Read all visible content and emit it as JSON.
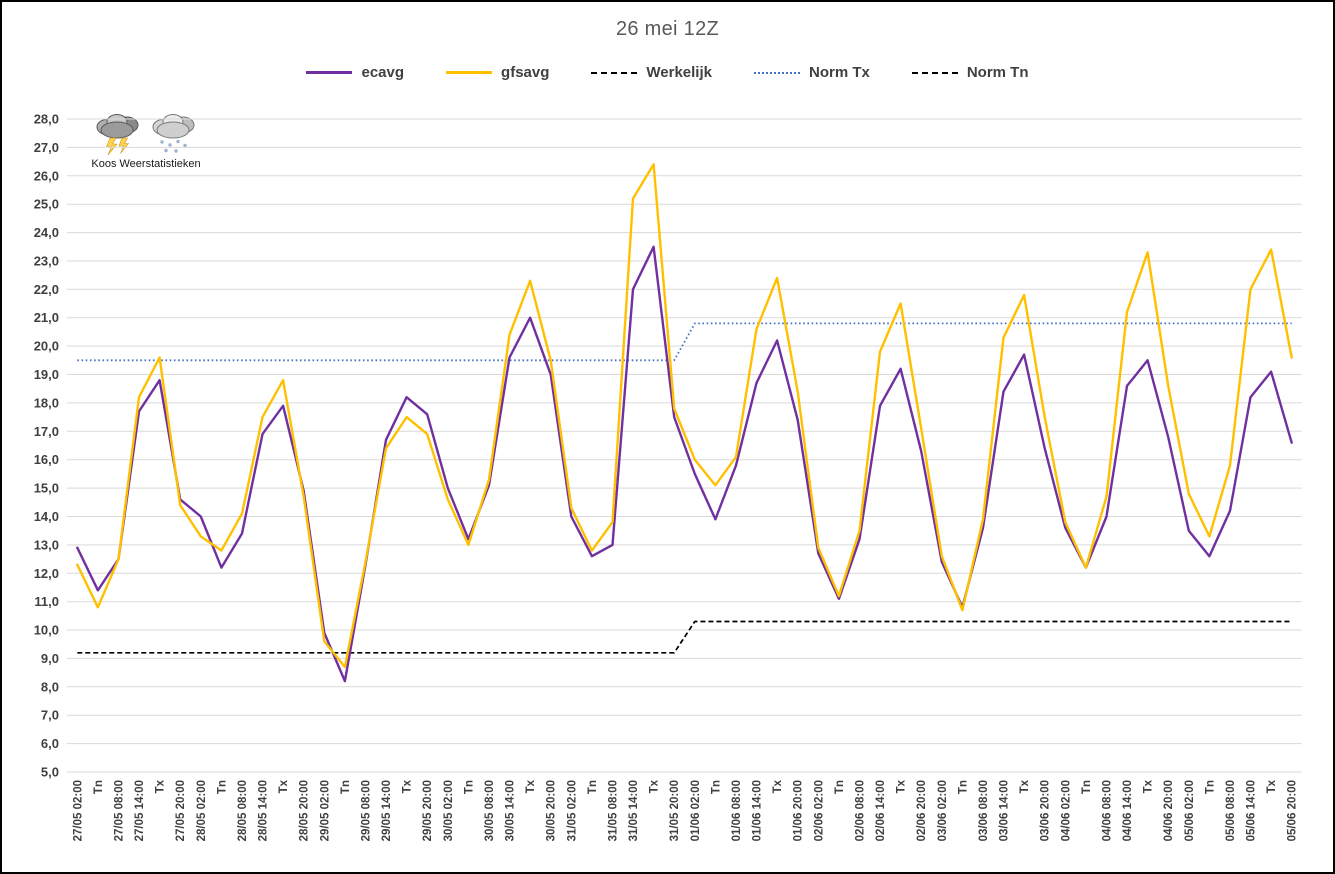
{
  "title": "26 mei 12Z",
  "logo": {
    "label": "Koos Weerstatistieken"
  },
  "legend": [
    {
      "label": "ecavg",
      "color": "#7030A0",
      "style": "solid"
    },
    {
      "label": "gfsavg",
      "color": "#FFC000",
      "style": "solid"
    },
    {
      "label": "Werkelijk",
      "color": "#000000",
      "style": "dashed"
    },
    {
      "label": "Norm Tx",
      "color": "#4472C4",
      "style": "dotted"
    },
    {
      "label": "Norm Tn",
      "color": "#000000",
      "style": "dashed"
    }
  ],
  "chart_data": {
    "type": "line",
    "title": "26 mei 12Z",
    "ylabel": "",
    "xlabel": "",
    "ylim": [
      5.0,
      28.0
    ],
    "ytick_step": 1.0,
    "decimal_separator": ",",
    "grid": true,
    "legend_position": "top",
    "categories": [
      "27/05 02:00",
      "Tn",
      "27/05 08:00",
      "27/05 14:00",
      "Tx",
      "27/05 20:00",
      "28/05 02:00",
      "Tn",
      "28/05 08:00",
      "28/05 14:00",
      "Tx",
      "28/05 20:00",
      "29/05 02:00",
      "Tn",
      "29/05 08:00",
      "29/05 14:00",
      "Tx",
      "29/05 20:00",
      "30/05 02:00",
      "Tn",
      "30/05 08:00",
      "30/05 14:00",
      "Tx",
      "30/05 20:00",
      "31/05 02:00",
      "Tn",
      "31/05 08:00",
      "31/05 14:00",
      "Tx",
      "31/05 20:00",
      "01/06 02:00",
      "Tn",
      "01/06 08:00",
      "01/06 14:00",
      "Tx",
      "01/06 20:00",
      "02/06 02:00",
      "Tn",
      "02/06 08:00",
      "02/06 14:00",
      "Tx",
      "02/06 20:00",
      "03/06 02:00",
      "Tn",
      "03/06 08:00",
      "03/06 14:00",
      "Tx",
      "03/06 20:00",
      "04/06 02:00",
      "Tn",
      "04/06 08:00",
      "04/06 14:00",
      "Tx",
      "04/06 20:00",
      "05/06 02:00",
      "Tn",
      "05/06 08:00",
      "05/06 14:00",
      "Tx",
      "05/06 20:00"
    ],
    "series": [
      {
        "name": "ecavg",
        "color": "#7030A0",
        "style": "solid",
        "values": [
          12.9,
          11.4,
          12.5,
          17.7,
          18.8,
          14.6,
          14.0,
          12.2,
          13.4,
          16.9,
          17.9,
          14.9,
          9.9,
          8.2,
          12.3,
          16.7,
          18.2,
          17.6,
          15.0,
          13.2,
          15.1,
          19.6,
          21.0,
          19.0,
          14.0,
          12.6,
          13.0,
          22.0,
          23.5,
          17.5,
          15.5,
          13.9,
          15.8,
          18.7,
          20.2,
          17.4,
          12.7,
          11.1,
          13.2,
          17.9,
          19.2,
          16.3,
          12.4,
          10.8,
          13.6,
          18.4,
          19.7,
          16.4,
          13.6,
          12.2,
          14.0,
          18.6,
          19.5,
          16.8,
          13.5,
          12.6,
          14.2,
          18.2,
          19.1,
          16.6
        ]
      },
      {
        "name": "gfsavg",
        "color": "#FFC000",
        "style": "solid",
        "values": [
          12.3,
          10.8,
          12.5,
          18.2,
          19.6,
          14.4,
          13.3,
          12.8,
          14.1,
          17.5,
          18.8,
          14.7,
          9.6,
          8.7,
          12.4,
          16.4,
          17.5,
          16.9,
          14.6,
          13.0,
          15.3,
          20.4,
          22.3,
          19.5,
          14.3,
          12.8,
          13.8,
          25.2,
          26.4,
          17.8,
          16.0,
          15.1,
          16.1,
          20.6,
          22.4,
          18.4,
          12.9,
          11.2,
          13.5,
          19.8,
          21.5,
          17.1,
          12.6,
          10.7,
          13.9,
          20.3,
          21.8,
          17.5,
          13.8,
          12.2,
          14.7,
          21.2,
          23.3,
          18.6,
          14.8,
          13.3,
          15.8,
          22.0,
          23.4,
          19.6
        ]
      },
      {
        "name": "Werkelijk",
        "color": "#000000",
        "style": "dashed",
        "values": []
      },
      {
        "name": "Norm Tx",
        "color": "#4472C4",
        "style": "dotted",
        "values": [
          19.5,
          19.5,
          19.5,
          19.5,
          19.5,
          19.5,
          19.5,
          19.5,
          19.5,
          19.5,
          19.5,
          19.5,
          19.5,
          19.5,
          19.5,
          19.5,
          19.5,
          19.5,
          19.5,
          19.5,
          19.5,
          19.5,
          19.5,
          19.5,
          19.5,
          19.5,
          19.5,
          19.5,
          19.5,
          19.5,
          20.8,
          20.8,
          20.8,
          20.8,
          20.8,
          20.8,
          20.8,
          20.8,
          20.8,
          20.8,
          20.8,
          20.8,
          20.8,
          20.8,
          20.8,
          20.8,
          20.8,
          20.8,
          20.8,
          20.8,
          20.8,
          20.8,
          20.8,
          20.8,
          20.8,
          20.8,
          20.8,
          20.8,
          20.8,
          20.8
        ]
      },
      {
        "name": "Norm Tn",
        "color": "#000000",
        "style": "dashed",
        "values": [
          9.2,
          9.2,
          9.2,
          9.2,
          9.2,
          9.2,
          9.2,
          9.2,
          9.2,
          9.2,
          9.2,
          9.2,
          9.2,
          9.2,
          9.2,
          9.2,
          9.2,
          9.2,
          9.2,
          9.2,
          9.2,
          9.2,
          9.2,
          9.2,
          9.2,
          9.2,
          9.2,
          9.2,
          9.2,
          9.2,
          10.3,
          10.3,
          10.3,
          10.3,
          10.3,
          10.3,
          10.3,
          10.3,
          10.3,
          10.3,
          10.3,
          10.3,
          10.3,
          10.3,
          10.3,
          10.3,
          10.3,
          10.3,
          10.3,
          10.3,
          10.3,
          10.3,
          10.3,
          10.3,
          10.3,
          10.3,
          10.3,
          10.3,
          10.3,
          10.3
        ]
      }
    ]
  }
}
